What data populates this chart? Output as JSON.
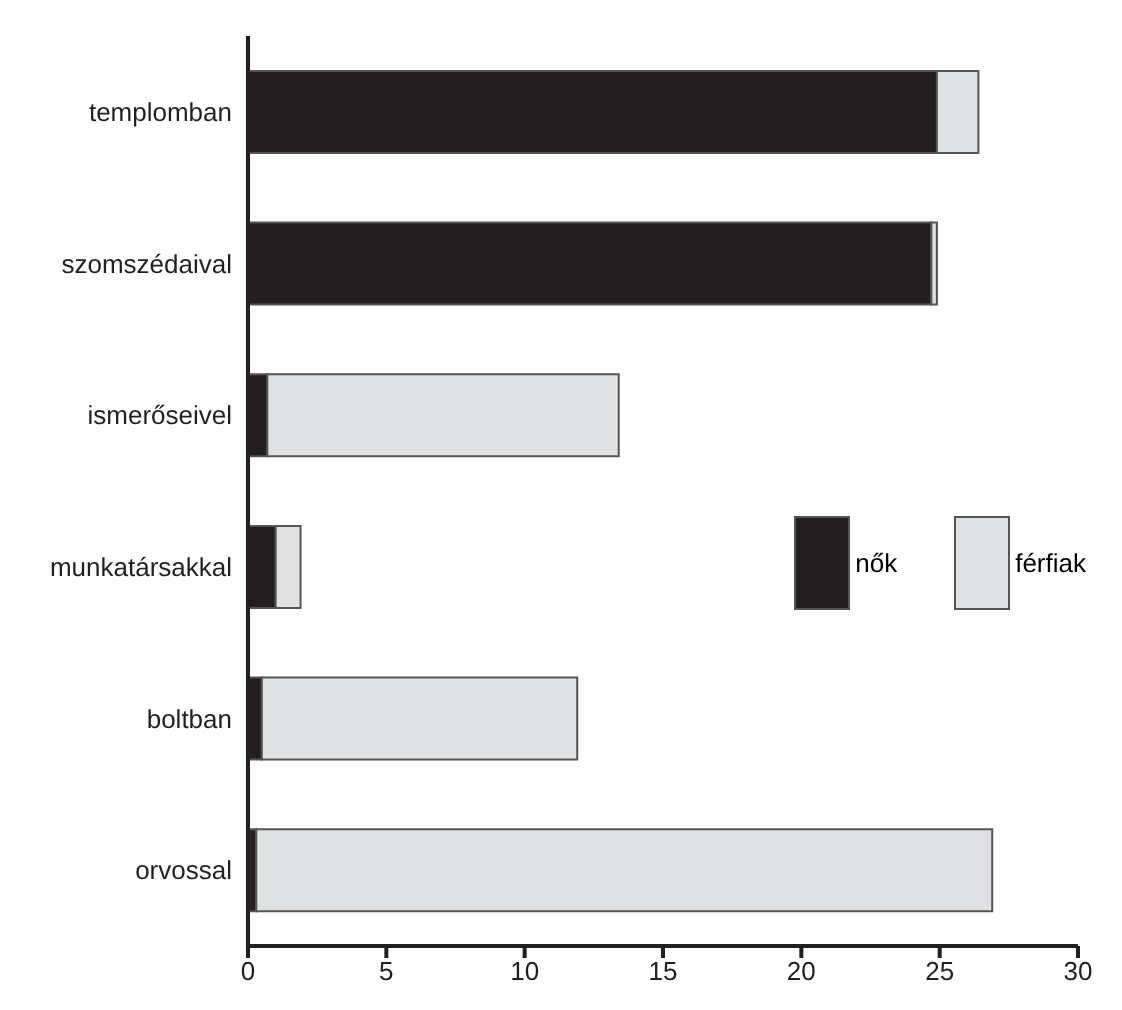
{
  "chart_data": {
    "type": "bar",
    "orientation": "horizontal",
    "stacked": true,
    "categories": [
      "templomban",
      "szomszédaival",
      "ismerőseivel",
      "munkatársakkal",
      "boltban",
      "orvossal"
    ],
    "series": [
      {
        "name": "nők",
        "color": "#231f20",
        "values": [
          24.9,
          24.7,
          0.7,
          1.0,
          0.5,
          0.3
        ]
      },
      {
        "name": "férfiak",
        "color": "#e0e1e2",
        "values": [
          1.5,
          0.2,
          12.7,
          0.9,
          11.4,
          26.6
        ]
      }
    ],
    "xlim": [
      0,
      30
    ],
    "xticks": [
      0,
      5,
      10,
      15,
      20,
      25,
      30
    ],
    "grid": false,
    "legend": "right"
  }
}
